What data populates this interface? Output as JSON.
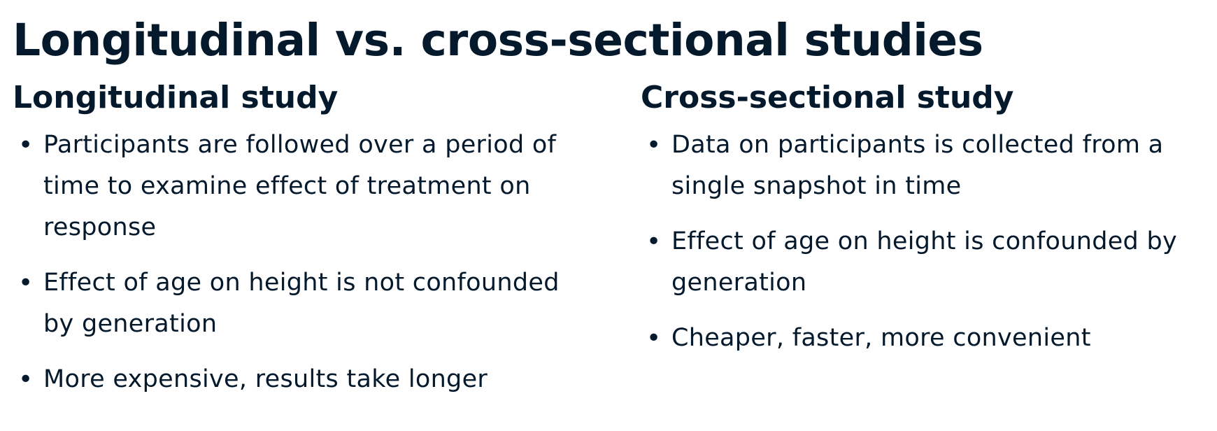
{
  "slide": {
    "title": "Longitudinal vs. cross-sectional studies"
  },
  "columns": [
    {
      "heading": "Longitudinal study",
      "bullets": [
        "Participants are followed over a period of time to examine effect of treatment on response",
        "Effect of age on height is not confounded by generation",
        "More expensive, results take longer"
      ]
    },
    {
      "heading": "Cross-sectional study",
      "bullets": [
        "Data on participants is collected from a single snapshot in time",
        "Effect of age on height is confounded by generation",
        "Cheaper, faster, more convenient"
      ]
    }
  ],
  "colors": {
    "text": "#05192d",
    "background": "#ffffff"
  },
  "icons": {
    "bullet": "bullet-dot-icon"
  }
}
